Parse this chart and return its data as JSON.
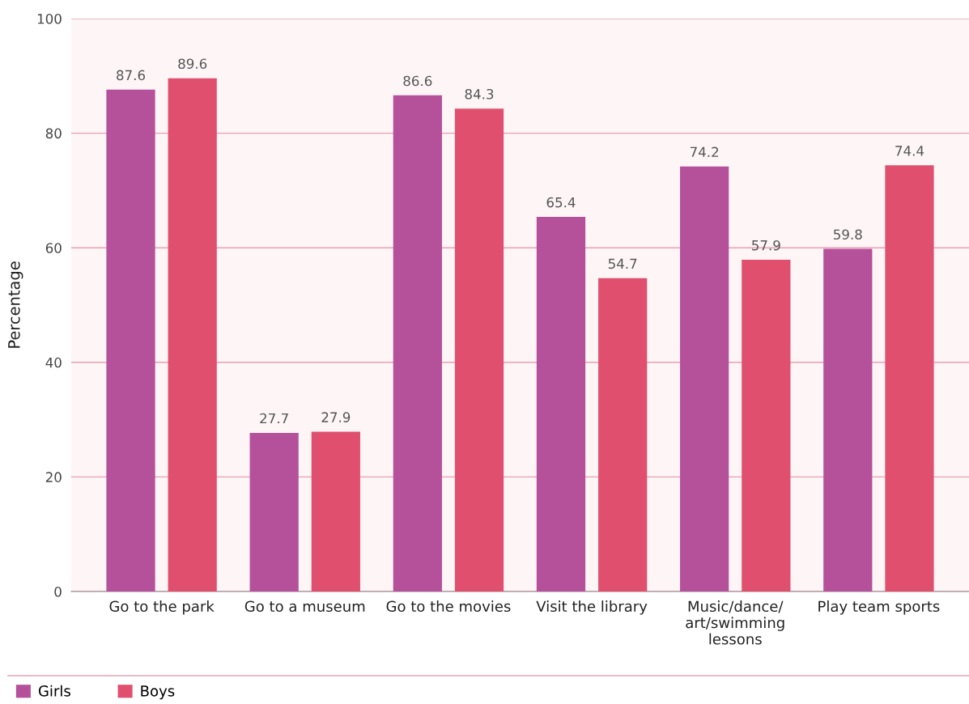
{
  "chart_data": {
    "type": "bar",
    "ylabel": "Percentage",
    "categories": [
      "Go to the park",
      "Go to a museum",
      "Go to the movies",
      "Visit the library",
      "Music/dance/\nart/swimming\nlessons",
      "Play team sports"
    ],
    "series": [
      {
        "name": "Girls",
        "color": "#b5519b",
        "values": [
          87.6,
          27.7,
          86.6,
          65.4,
          74.2,
          59.8
        ]
      },
      {
        "name": "Boys",
        "color": "#e0506e",
        "values": [
          89.6,
          27.9,
          84.3,
          54.7,
          57.9,
          74.4
        ]
      }
    ],
    "ylim": [
      0,
      100
    ],
    "yticks": [
      0,
      20,
      40,
      60,
      80,
      100
    ],
    "grid": "y",
    "legend": "bottom left",
    "data_labels": true
  }
}
